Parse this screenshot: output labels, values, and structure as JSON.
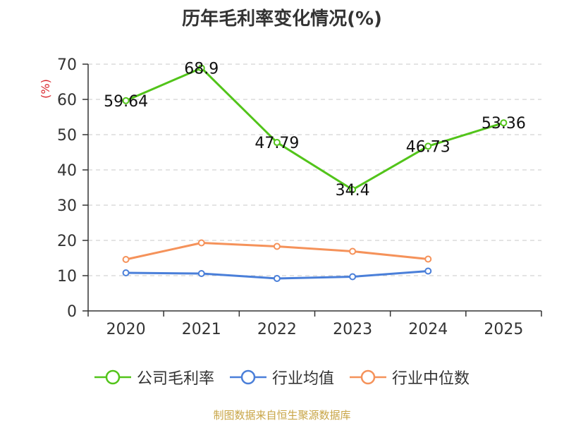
{
  "title": "历年毛利率变化情况(%)",
  "source": "制图数据来自恒生聚源数据库",
  "chart_data": {
    "type": "line",
    "title": "历年毛利率变化情况(%)",
    "ylabel": "(%)",
    "xlabel": "",
    "categories": [
      "2020",
      "2021",
      "2022",
      "2023",
      "2024",
      "2025"
    ],
    "ylim": [
      0,
      70
    ],
    "yticks": [
      0,
      10,
      20,
      30,
      40,
      50,
      60,
      70
    ],
    "grid": true,
    "legend_position": "bottom",
    "series": [
      {
        "name": "公司毛利率",
        "color": "#52c41a",
        "values": [
          59.64,
          68.9,
          47.79,
          34.4,
          46.73,
          53.36
        ],
        "labels": [
          "59.64",
          "68.9",
          "47.79",
          "34.4",
          "46.73",
          "53.36"
        ]
      },
      {
        "name": "行业均值",
        "color": "#4a7fd9",
        "values": [
          10.8,
          10.6,
          9.2,
          9.7,
          11.3,
          null
        ]
      },
      {
        "name": "行业中位数",
        "color": "#f5925a",
        "values": [
          14.6,
          19.3,
          18.3,
          16.9,
          14.7,
          null
        ]
      }
    ]
  }
}
